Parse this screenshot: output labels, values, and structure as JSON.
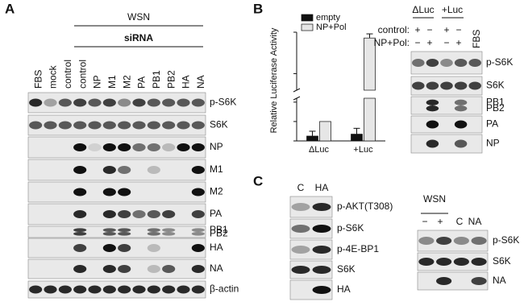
{
  "panel_a": {
    "label": "A",
    "group_top": "WSN",
    "group_sub": "siRNA",
    "lanes": [
      "FBS",
      "mock",
      "control",
      "control",
      "NP",
      "M1",
      "M2",
      "PA",
      "PB1",
      "PB2",
      "HA",
      "NA"
    ],
    "rows": [
      [
        "p-S6K"
      ],
      [
        "S6K"
      ],
      [
        "NP"
      ],
      [
        "M1"
      ],
      [
        "M2"
      ],
      [
        "PA"
      ],
      [
        "PB1",
        "PB2"
      ],
      [
        "HA"
      ],
      [
        "NA"
      ],
      [
        "β-actin"
      ]
    ]
  },
  "panel_b": {
    "label": "B",
    "chart": {
      "type": "bar",
      "y_label": "Relative Luciferase Activity",
      "categories": [
        "ΔLuc",
        "+Luc"
      ],
      "series": [
        {
          "name": "empty",
          "color": "#111111",
          "values": [
            0.25,
            0.35
          ],
          "errors": [
            0.25,
            0.3
          ]
        },
        {
          "name": "NP+Pol",
          "color": "#e6e6e6",
          "values": [
            1,
            143
          ],
          "errors": [
            0,
            5
          ]
        }
      ],
      "lower_ylim": [
        0,
        2.2
      ],
      "lower_yticks": [
        0,
        1,
        2
      ],
      "upper_ylim": [
        80,
        150
      ],
      "upper_yticks": [
        100,
        150
      ]
    },
    "blot": {
      "headers": [
        "ΔLuc",
        "+Luc"
      ],
      "conditions": [
        {
          "name": "control:",
          "signs": [
            "+",
            "−",
            "+",
            "−"
          ]
        },
        {
          "name": "NP+Pol:",
          "signs": [
            "−",
            "+",
            "−",
            "+"
          ]
        }
      ],
      "fbs": "FBS",
      "rows": [
        [
          "p-S6K"
        ],
        [
          "S6K"
        ],
        [
          "PB1",
          "PB2"
        ],
        [
          "PA"
        ],
        [
          "NP"
        ]
      ]
    }
  },
  "panel_c": {
    "label": "C",
    "left": {
      "lanes": [
        "C",
        "HA"
      ],
      "rows": [
        [
          "p-AKT(T308)"
        ],
        [
          "p-S6K"
        ],
        [
          "p-4E-BP1"
        ],
        [
          "S6K"
        ],
        [
          "HA"
        ]
      ]
    },
    "right": {
      "header": "WSN",
      "lanes": [
        "−",
        "+",
        "C",
        "NA"
      ],
      "rows": [
        [
          "p-S6K"
        ],
        [
          "S6K"
        ],
        [
          "NA"
        ]
      ]
    }
  }
}
